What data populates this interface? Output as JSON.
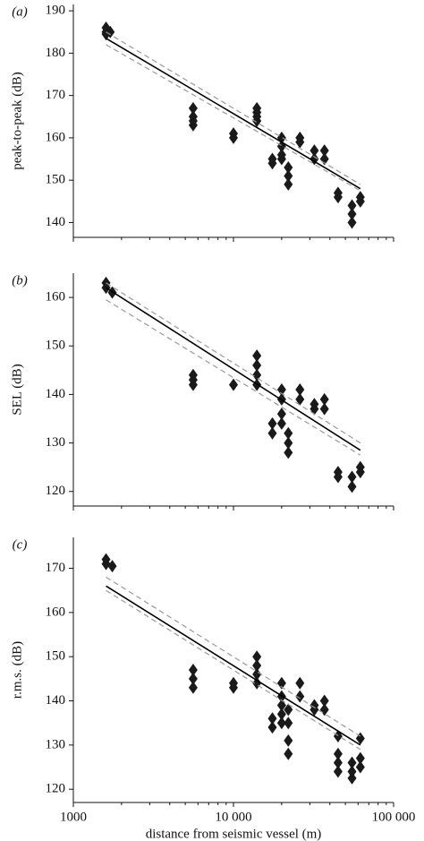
{
  "chart_data": [
    {
      "type": "scatter",
      "title": "(a)",
      "ylabel": "peak-to-peak (dB)",
      "xscale": "log",
      "xlim": [
        1000,
        100000
      ],
      "xticks": [
        1000,
        10000,
        100000
      ],
      "ylim": [
        136.5,
        191.5
      ],
      "yticks": [
        140,
        150,
        160,
        170,
        180,
        190
      ],
      "series": [
        {
          "mode": "markers",
          "color": "#1a1a1a",
          "x": [
            1600,
            1600,
            1600,
            1700,
            5600,
            5600,
            5600,
            5600,
            10000,
            10000,
            14000,
            14000,
            14000,
            14000,
            17500,
            17500,
            20000,
            20000,
            20000,
            20000,
            22000,
            22000,
            22000,
            26000,
            26000,
            32000,
            32000,
            37000,
            37000,
            45000,
            45000,
            55000,
            55000,
            55000,
            62000,
            62000
          ],
          "values": [
            186,
            185,
            184.5,
            185,
            167,
            165,
            164,
            163,
            161,
            160,
            167,
            166,
            165,
            164,
            155,
            154,
            160,
            158,
            156,
            155,
            153,
            151,
            149,
            160,
            159,
            157,
            155,
            157,
            155,
            147,
            146,
            144,
            142,
            140,
            146,
            145
          ]
        },
        {
          "mode": "line",
          "dash": false,
          "color": "#000000",
          "x": [
            1600,
            62000
          ],
          "values": [
            183.5,
            148
          ]
        },
        {
          "mode": "line",
          "dash": true,
          "color": "#999999",
          "x": [
            1600,
            62000
          ],
          "values": [
            185,
            149
          ]
        },
        {
          "mode": "line",
          "dash": true,
          "color": "#999999",
          "x": [
            1600,
            62000
          ],
          "values": [
            182,
            147.5
          ]
        }
      ]
    },
    {
      "type": "scatter",
      "title": "(b)",
      "ylabel": "SEL (dB)",
      "xscale": "log",
      "xlim": [
        1000,
        100000
      ],
      "xticks": [
        1000,
        10000,
        100000
      ],
      "ylim": [
        117,
        165
      ],
      "yticks": [
        120,
        130,
        140,
        150,
        160
      ],
      "series": [
        {
          "mode": "markers",
          "color": "#1a1a1a",
          "x": [
            1600,
            1600,
            1750,
            5600,
            5600,
            5600,
            10000,
            14000,
            14000,
            14000,
            14000,
            17500,
            17500,
            20000,
            20000,
            20000,
            20000,
            22000,
            22000,
            22000,
            26000,
            26000,
            32000,
            32000,
            37000,
            37000,
            45000,
            45000,
            55000,
            55000,
            62000,
            62000
          ],
          "values": [
            163,
            162,
            161,
            144,
            143,
            142,
            142,
            148,
            146,
            144,
            142,
            134,
            132,
            141,
            139,
            136,
            134,
            132,
            130,
            128,
            141,
            139,
            138,
            137,
            139,
            137,
            124,
            123,
            123,
            121,
            125,
            124
          ]
        },
        {
          "mode": "line",
          "dash": false,
          "color": "#000000",
          "x": [
            1600,
            62000
          ],
          "values": [
            162,
            128.5
          ]
        },
        {
          "mode": "line",
          "dash": true,
          "color": "#999999",
          "x": [
            1600,
            62000
          ],
          "values": [
            163,
            130
          ]
        },
        {
          "mode": "line",
          "dash": true,
          "color": "#999999",
          "x": [
            1600,
            62000
          ],
          "values": [
            159.5,
            127.5
          ]
        }
      ]
    },
    {
      "type": "scatter",
      "title": "(c)",
      "ylabel": "r.m.s. (dB)",
      "xlabel": "distance from seismic vessel (m)",
      "xscale": "log",
      "xlim": [
        1000,
        100000
      ],
      "xticks": [
        1000,
        {
          "value": 10000,
          "label": "10 000"
        },
        {
          "value": 100000,
          "label": "100 000"
        }
      ],
      "ylim": [
        117,
        177
      ],
      "yticks": [
        120,
        130,
        140,
        150,
        160,
        170
      ],
      "series": [
        {
          "mode": "markers",
          "color": "#1a1a1a",
          "x": [
            1600,
            1600,
            1750,
            5600,
            5600,
            5600,
            10000,
            10000,
            14000,
            14000,
            14000,
            14000,
            17500,
            17500,
            20000,
            20000,
            20000,
            20000,
            20000,
            22000,
            22000,
            22000,
            22000,
            26000,
            26000,
            32000,
            32000,
            37000,
            37000,
            45000,
            45000,
            45000,
            45000,
            55000,
            55000,
            55000,
            62000,
            62000,
            62000
          ],
          "values": [
            172,
            171,
            170.5,
            147,
            145,
            143,
            144,
            143,
            150,
            148,
            146,
            144,
            136,
            134,
            144,
            141,
            139,
            137,
            135,
            138,
            135,
            131,
            128,
            144,
            141,
            139,
            138,
            140,
            138,
            132,
            128,
            126,
            124,
            126,
            124,
            122.5,
            131.5,
            127,
            125
          ]
        },
        {
          "mode": "line",
          "dash": false,
          "color": "#000000",
          "x": [
            1600,
            62000
          ],
          "values": [
            166,
            130
          ]
        },
        {
          "mode": "line",
          "dash": true,
          "color": "#999999",
          "x": [
            1600,
            62000
          ],
          "values": [
            168,
            132
          ]
        },
        {
          "mode": "line",
          "dash": true,
          "color": "#999999",
          "x": [
            1600,
            62000
          ],
          "values": [
            165,
            129
          ]
        }
      ]
    }
  ]
}
